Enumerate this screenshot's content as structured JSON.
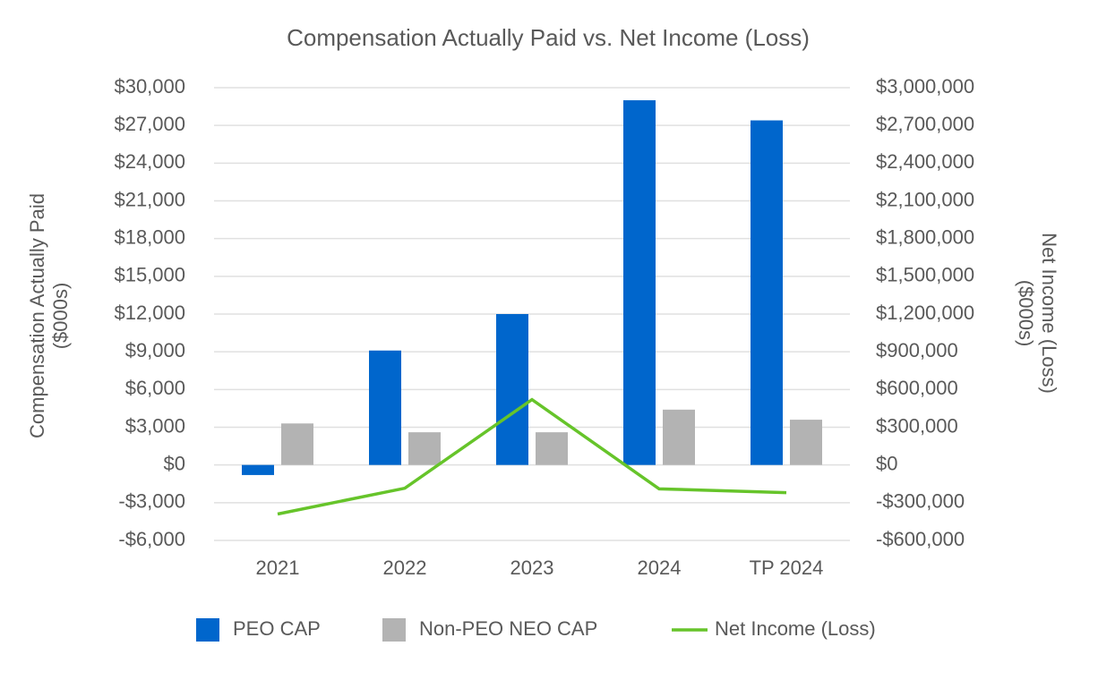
{
  "chart_data": {
    "type": "bar",
    "title": "Compensation Actually Paid vs. Net Income (Loss)",
    "y_label": [
      "Compensation Actually Paid",
      "($000s)"
    ],
    "y2_label": [
      "Net Income (Loss)",
      "($000s)"
    ],
    "categories": [
      "2021",
      "2022",
      "2023",
      "2024",
      "TP 2024"
    ],
    "series": [
      {
        "name": "PEO CAP",
        "type": "bar",
        "color": "#0066cc",
        "values": [
          -800,
          9100,
          12000,
          29000,
          27400
        ]
      },
      {
        "name": "Non-PEO NEO CAP",
        "type": "bar",
        "color": "#b3b3b3",
        "values": [
          3300,
          2600,
          2600,
          4400,
          3600
        ]
      },
      {
        "name": "Net Income (Loss)",
        "type": "line",
        "axis": "y2",
        "color": "#66c42a",
        "values": [
          -390000,
          -185000,
          520000,
          -190000,
          -220000
        ]
      }
    ],
    "ylim": [
      -6000,
      30000
    ],
    "yticks": [
      {
        "value": -6000,
        "label": "-$6,000"
      },
      {
        "value": -3000,
        "label": "-$3,000"
      },
      {
        "value": 0,
        "label": "$0"
      },
      {
        "value": 3000,
        "label": "$3,000"
      },
      {
        "value": 6000,
        "label": "$6,000"
      },
      {
        "value": 9000,
        "label": "$9,000"
      },
      {
        "value": 12000,
        "label": "$12,000"
      },
      {
        "value": 15000,
        "label": "$15,000"
      },
      {
        "value": 18000,
        "label": "$18,000"
      },
      {
        "value": 21000,
        "label": "$21,000"
      },
      {
        "value": 24000,
        "label": "$24,000"
      },
      {
        "value": 27000,
        "label": "$27,000"
      },
      {
        "value": 30000,
        "label": "$30,000"
      }
    ],
    "y2lim": [
      -600000,
      3000000
    ],
    "y2ticks": [
      {
        "value": -600000,
        "label": "-$600,000"
      },
      {
        "value": -300000,
        "label": "-$300,000"
      },
      {
        "value": 0,
        "label": "$0"
      },
      {
        "value": 300000,
        "label": "$300,000"
      },
      {
        "value": 600000,
        "label": "$600,000"
      },
      {
        "value": 900000,
        "label": "$900,000"
      },
      {
        "value": 1200000,
        "label": "$1,200,000"
      },
      {
        "value": 1500000,
        "label": "$1,500,000"
      },
      {
        "value": 1800000,
        "label": "$1,800,000"
      },
      {
        "value": 2100000,
        "label": "$2,100,000"
      },
      {
        "value": 2400000,
        "label": "$2,400,000"
      },
      {
        "value": 2700000,
        "label": "$2,700,000"
      },
      {
        "value": 3000000,
        "label": "$3,000,000"
      }
    ],
    "grid": true,
    "legend": "bottom"
  }
}
